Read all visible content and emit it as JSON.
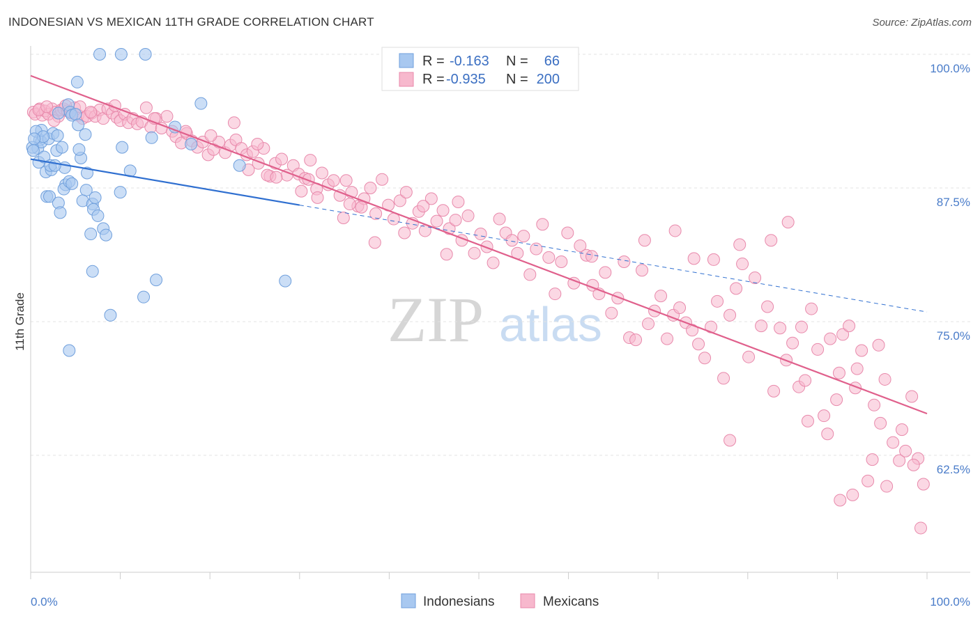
{
  "header": {
    "title": "INDONESIAN VS MEXICAN 11TH GRADE CORRELATION CHART",
    "source": "Source: ZipAtlas.com"
  },
  "watermark": {
    "zip": "ZIP",
    "atlas": "atlas"
  },
  "legend_box": {
    "rows": [
      {
        "r_label": "R =",
        "r_value": "-0.163",
        "n_label": "N =",
        "n_value": "66",
        "color": "#a8c8f0"
      },
      {
        "r_label": "R =",
        "r_value": "-0.935",
        "n_label": "N =",
        "n_value": "200",
        "color": "#f7b8cd"
      }
    ]
  },
  "bottom_legend": {
    "items": [
      {
        "label": "Indonesians",
        "color": "#a8c8f0"
      },
      {
        "label": "Mexicans",
        "color": "#f7b8cd"
      }
    ]
  },
  "chart_data": {
    "type": "scatter",
    "title": "INDONESIAN VS MEXICAN 11TH GRADE CORRELATION CHART",
    "xlabel": "",
    "ylabel": "11th Grade",
    "xlim": [
      0,
      100
    ],
    "ylim": [
      52,
      101
    ],
    "x_tick_labels": [
      "0.0%",
      "100.0%"
    ],
    "y_ticks": [
      100,
      87.5,
      75,
      62.5
    ],
    "y_tick_labels": [
      "100.0%",
      "87.5%",
      "75.0%",
      "62.5%"
    ],
    "grid": true,
    "legend_position": "top-center",
    "colors": {
      "indonesians_fill": "#a8c8f0",
      "indonesians_line": "#2f6fd0",
      "mexicans_fill": "#f7b8cd",
      "mexicans_line": "#e0608c"
    },
    "series": [
      {
        "name": "Indonesians",
        "points": [
          [
            7.7,
            100
          ],
          [
            10.1,
            100
          ],
          [
            12.8,
            100
          ],
          [
            5.2,
            97.4
          ],
          [
            1.0,
            92.0
          ],
          [
            0.8,
            91.2
          ],
          [
            1.2,
            91.8
          ],
          [
            0.9,
            89.9
          ],
          [
            1.5,
            90.4
          ],
          [
            1.7,
            89.0
          ],
          [
            2.3,
            89.2
          ],
          [
            2.2,
            89.6
          ],
          [
            2.0,
            92.1
          ],
          [
            1.2,
            92.9
          ],
          [
            2.5,
            92.6
          ],
          [
            2.9,
            91.0
          ],
          [
            3.5,
            91.3
          ],
          [
            4.2,
            95.3
          ],
          [
            4.4,
            94.6
          ],
          [
            4.6,
            94.3
          ],
          [
            5.0,
            94.4
          ],
          [
            3.8,
            89.4
          ],
          [
            3.9,
            87.8
          ],
          [
            3.7,
            87.4
          ],
          [
            4.3,
            88.1
          ],
          [
            4.6,
            87.9
          ],
          [
            2.7,
            89.6
          ],
          [
            3.1,
            94.5
          ],
          [
            5.6,
            90.3
          ],
          [
            5.4,
            91.1
          ],
          [
            6.1,
            92.5
          ],
          [
            6.3,
            88.9
          ],
          [
            6.2,
            87.3
          ],
          [
            1.8,
            86.7
          ],
          [
            2.1,
            86.7
          ],
          [
            3.1,
            86.1
          ],
          [
            3.3,
            85.2
          ],
          [
            5.8,
            86.3
          ],
          [
            6.9,
            86.0
          ],
          [
            7.2,
            86.6
          ],
          [
            7.0,
            85.5
          ],
          [
            7.5,
            84.9
          ],
          [
            8.1,
            83.7
          ],
          [
            8.4,
            83.1
          ],
          [
            6.7,
            83.2
          ],
          [
            13.5,
            92.2
          ],
          [
            16.1,
            93.2
          ],
          [
            17.9,
            91.6
          ],
          [
            19.0,
            95.4
          ],
          [
            23.3,
            89.6
          ],
          [
            10.2,
            91.3
          ],
          [
            5.3,
            93.4
          ],
          [
            6.9,
            79.7
          ],
          [
            14.0,
            78.9
          ],
          [
            28.4,
            78.8
          ],
          [
            12.6,
            77.3
          ],
          [
            8.9,
            75.6
          ],
          [
            11.1,
            89.1
          ],
          [
            10.0,
            87.1
          ],
          [
            4.3,
            72.3
          ],
          [
            0.2,
            91.3
          ],
          [
            0.6,
            92.8
          ],
          [
            3.0,
            92.4
          ],
          [
            1.4,
            92.3
          ],
          [
            0.4,
            92.1
          ],
          [
            0.3,
            91.0
          ]
        ]
      },
      {
        "name": "Mexicans",
        "points": [
          [
            0.3,
            94.6
          ],
          [
            0.5,
            94.4
          ],
          [
            1.0,
            94.9
          ],
          [
            1.3,
            94.3
          ],
          [
            1.6,
            94.7
          ],
          [
            2.0,
            94.4
          ],
          [
            2.4,
            94.9
          ],
          [
            2.8,
            94.6
          ],
          [
            3.1,
            94.2
          ],
          [
            3.4,
            94.8
          ],
          [
            3.7,
            94.9
          ],
          [
            4.1,
            94.7
          ],
          [
            4.5,
            94.5
          ],
          [
            4.9,
            95.0
          ],
          [
            5.3,
            94.3
          ],
          [
            5.8,
            94.0
          ],
          [
            6.3,
            94.2
          ],
          [
            6.8,
            94.5
          ],
          [
            7.2,
            94.2
          ],
          [
            7.7,
            94.8
          ],
          [
            8.1,
            94.0
          ],
          [
            8.6,
            94.9
          ],
          [
            9.1,
            94.5
          ],
          [
            9.6,
            94.1
          ],
          [
            10.0,
            93.8
          ],
          [
            10.5,
            94.4
          ],
          [
            10.9,
            93.6
          ],
          [
            11.4,
            94.0
          ],
          [
            11.9,
            93.5
          ],
          [
            12.4,
            93.7
          ],
          [
            12.9,
            95.0
          ],
          [
            13.4,
            93.2
          ],
          [
            14.0,
            94.0
          ],
          [
            14.6,
            93.1
          ],
          [
            15.2,
            94.2
          ],
          [
            15.8,
            92.8
          ],
          [
            16.2,
            92.3
          ],
          [
            16.8,
            91.7
          ],
          [
            17.4,
            92.6
          ],
          [
            18.0,
            91.9
          ],
          [
            18.6,
            91.3
          ],
          [
            19.2,
            91.8
          ],
          [
            19.8,
            90.6
          ],
          [
            20.4,
            91.1
          ],
          [
            21.0,
            91.8
          ],
          [
            21.7,
            90.8
          ],
          [
            22.3,
            91.5
          ],
          [
            22.9,
            92.0
          ],
          [
            23.5,
            91.2
          ],
          [
            24.1,
            90.6
          ],
          [
            24.8,
            90.9
          ],
          [
            25.4,
            89.8
          ],
          [
            26.0,
            91.2
          ],
          [
            26.7,
            88.6
          ],
          [
            27.3,
            89.8
          ],
          [
            28.0,
            90.2
          ],
          [
            28.6,
            88.7
          ],
          [
            29.3,
            89.6
          ],
          [
            29.9,
            88.8
          ],
          [
            30.6,
            88.4
          ],
          [
            31.2,
            90.1
          ],
          [
            31.9,
            87.4
          ],
          [
            32.5,
            88.9
          ],
          [
            33.2,
            87.8
          ],
          [
            33.8,
            88.2
          ],
          [
            34.5,
            86.8
          ],
          [
            35.2,
            88.2
          ],
          [
            35.8,
            87.1
          ],
          [
            36.5,
            85.8
          ],
          [
            37.2,
            86.5
          ],
          [
            37.9,
            87.5
          ],
          [
            38.5,
            85.1
          ],
          [
            39.2,
            88.3
          ],
          [
            39.9,
            85.9
          ],
          [
            40.5,
            84.6
          ],
          [
            41.2,
            86.3
          ],
          [
            41.9,
            87.1
          ],
          [
            42.6,
            84.2
          ],
          [
            43.3,
            85.3
          ],
          [
            44.0,
            83.5
          ],
          [
            44.7,
            86.5
          ],
          [
            45.3,
            84.4
          ],
          [
            46.0,
            85.4
          ],
          [
            46.7,
            83.7
          ],
          [
            47.4,
            84.5
          ],
          [
            48.1,
            82.6
          ],
          [
            48.8,
            84.9
          ],
          [
            49.5,
            81.4
          ],
          [
            50.2,
            83.2
          ],
          [
            50.9,
            82.0
          ],
          [
            51.6,
            80.5
          ],
          [
            52.3,
            84.6
          ],
          [
            53.0,
            83.3
          ],
          [
            53.7,
            82.6
          ],
          [
            54.3,
            81.4
          ],
          [
            55.0,
            83.0
          ],
          [
            55.7,
            79.4
          ],
          [
            56.4,
            81.8
          ],
          [
            57.1,
            84.1
          ],
          [
            57.8,
            81.0
          ],
          [
            58.5,
            77.6
          ],
          [
            59.2,
            80.6
          ],
          [
            59.9,
            83.3
          ],
          [
            60.6,
            78.6
          ],
          [
            61.3,
            82.1
          ],
          [
            62.0,
            81.2
          ],
          [
            62.7,
            78.4
          ],
          [
            63.4,
            77.6
          ],
          [
            64.1,
            79.6
          ],
          [
            64.8,
            75.8
          ],
          [
            65.5,
            77.2
          ],
          [
            66.2,
            80.6
          ],
          [
            66.8,
            73.5
          ],
          [
            67.5,
            73.3
          ],
          [
            68.2,
            79.8
          ],
          [
            68.9,
            74.8
          ],
          [
            69.6,
            76.0
          ],
          [
            70.3,
            77.4
          ],
          [
            71.0,
            73.4
          ],
          [
            71.7,
            75.6
          ],
          [
            72.4,
            76.3
          ],
          [
            73.1,
            74.9
          ],
          [
            73.8,
            74.2
          ],
          [
            74.5,
            72.9
          ],
          [
            75.2,
            71.6
          ],
          [
            75.9,
            74.5
          ],
          [
            76.6,
            76.9
          ],
          [
            77.3,
            69.7
          ],
          [
            78.0,
            75.6
          ],
          [
            78.7,
            78.1
          ],
          [
            79.4,
            80.4
          ],
          [
            80.1,
            71.7
          ],
          [
            80.8,
            79.1
          ],
          [
            81.5,
            74.6
          ],
          [
            82.2,
            76.4
          ],
          [
            82.9,
            68.5
          ],
          [
            83.6,
            74.4
          ],
          [
            84.3,
            71.4
          ],
          [
            85.0,
            73.0
          ],
          [
            85.7,
            68.9
          ],
          [
            86.4,
            69.5
          ],
          [
            87.1,
            76.2
          ],
          [
            87.8,
            72.4
          ],
          [
            88.5,
            66.2
          ],
          [
            89.2,
            73.4
          ],
          [
            89.9,
            67.7
          ],
          [
            90.6,
            73.8
          ],
          [
            91.3,
            74.6
          ],
          [
            92.0,
            68.8
          ],
          [
            92.7,
            72.3
          ],
          [
            93.4,
            60.1
          ],
          [
            94.1,
            67.2
          ],
          [
            94.8,
            65.5
          ],
          [
            95.5,
            59.6
          ],
          [
            96.2,
            63.7
          ],
          [
            96.9,
            62.0
          ],
          [
            97.6,
            62.9
          ],
          [
            98.3,
            68.0
          ],
          [
            99.0,
            62.2
          ],
          [
            99.6,
            59.8
          ],
          [
            43.8,
            85.8
          ],
          [
            47.7,
            86.2
          ],
          [
            35.6,
            86.0
          ],
          [
            31.0,
            88.3
          ],
          [
            26.4,
            88.7
          ],
          [
            24.3,
            89.2
          ],
          [
            62.6,
            81.1
          ],
          [
            68.5,
            82.6
          ],
          [
            71.9,
            83.5
          ],
          [
            74.0,
            80.9
          ],
          [
            76.2,
            80.8
          ],
          [
            79.1,
            82.2
          ],
          [
            84.5,
            84.3
          ],
          [
            82.6,
            82.6
          ],
          [
            86.0,
            74.5
          ],
          [
            90.2,
            70.2
          ],
          [
            92.2,
            70.6
          ],
          [
            94.6,
            72.8
          ],
          [
            95.3,
            69.6
          ],
          [
            97.2,
            64.9
          ],
          [
            98.5,
            61.6
          ],
          [
            99.3,
            55.7
          ],
          [
            91.7,
            58.8
          ],
          [
            78.0,
            63.9
          ],
          [
            86.7,
            65.7
          ],
          [
            88.9,
            64.5
          ],
          [
            90.3,
            58.3
          ],
          [
            93.9,
            62.1
          ],
          [
            0.9,
            94.8
          ],
          [
            1.8,
            95.1
          ],
          [
            2.6,
            93.8
          ],
          [
            3.9,
            95.2
          ],
          [
            5.5,
            95.1
          ],
          [
            6.7,
            94.6
          ],
          [
            9.4,
            95.2
          ],
          [
            13.8,
            94.0
          ],
          [
            17.3,
            92.8
          ],
          [
            20.1,
            92.4
          ],
          [
            22.7,
            93.6
          ],
          [
            25.3,
            91.6
          ],
          [
            27.4,
            88.5
          ],
          [
            30.2,
            87.2
          ],
          [
            32.0,
            86.6
          ],
          [
            34.9,
            84.7
          ],
          [
            36.9,
            85.7
          ],
          [
            38.4,
            82.4
          ],
          [
            41.7,
            83.3
          ],
          [
            46.4,
            81.3
          ]
        ]
      }
    ],
    "trend_lines": [
      {
        "series": "Indonesians",
        "from": [
          0,
          90.2
        ],
        "to": [
          30,
          85.9
        ],
        "dashed_extension_to": [
          100,
          75.9
        ]
      },
      {
        "series": "Mexicans",
        "from": [
          0,
          98.0
        ],
        "to": [
          100,
          66.4
        ]
      }
    ]
  }
}
